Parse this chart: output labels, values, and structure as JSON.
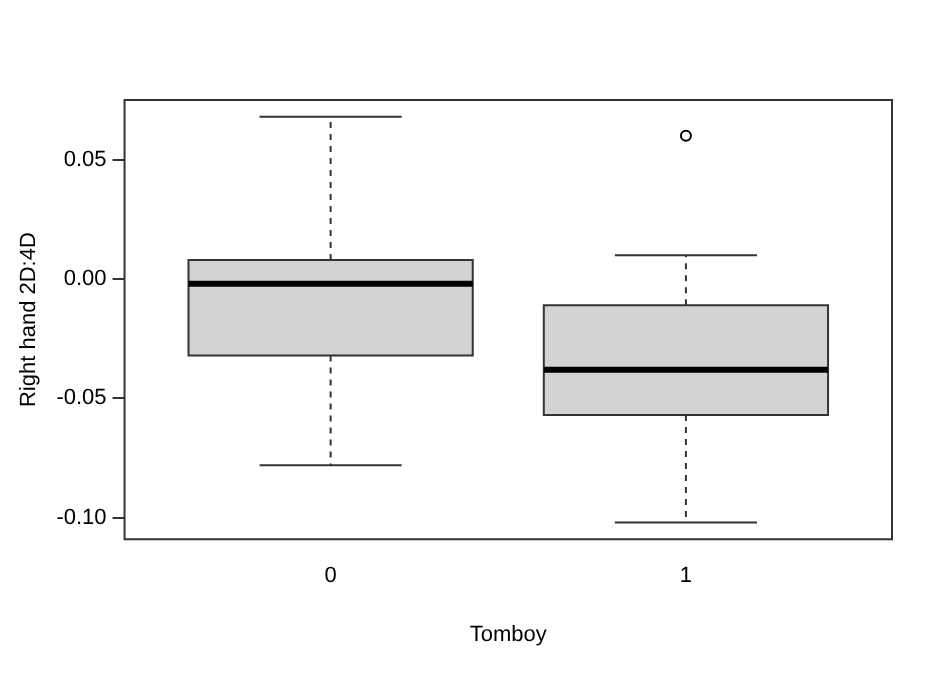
{
  "chart_data": {
    "type": "box",
    "xlabel": "Tomboy",
    "ylabel": "Right hand 2D:4D",
    "categories": [
      "0",
      "1"
    ],
    "color": "#d3d3d3",
    "boxes": [
      {
        "low": -0.078,
        "q1": -0.032,
        "median": -0.002,
        "q3": 0.008,
        "high": 0.068
      },
      {
        "low": -0.102,
        "q1": -0.057,
        "median": -0.038,
        "q3": -0.011,
        "high": 0.01,
        "outliers": [
          0.06
        ]
      }
    ],
    "ylim": [
      -0.109,
      0.075
    ],
    "yticks": [
      {
        "value": -0.1,
        "label": "-0.10"
      },
      {
        "value": -0.05,
        "label": "-0.05"
      },
      {
        "value": 0,
        "label": "0.00"
      },
      {
        "value": 0.05,
        "label": "0.05"
      }
    ],
    "grid": false,
    "legend": false
  }
}
